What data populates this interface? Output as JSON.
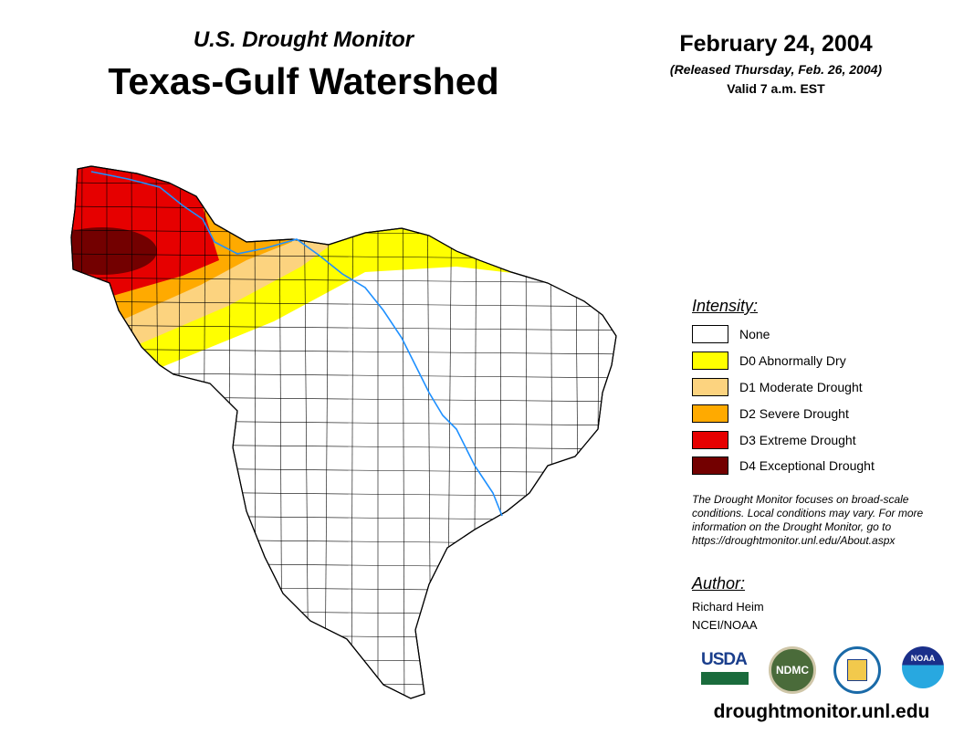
{
  "header": {
    "subtitle": "U.S. Drought Monitor",
    "title": "Texas-Gulf Watershed",
    "date": "February 24, 2004",
    "released": "(Released Thursday, Feb. 26, 2004)",
    "valid": "Valid 7 a.m. EST"
  },
  "legend": {
    "title": "Intensity:",
    "items": [
      {
        "label": "None",
        "color": "#ffffff"
      },
      {
        "label": "D0 Abnormally Dry",
        "color": "#ffff00"
      },
      {
        "label": "D1 Moderate Drought",
        "color": "#fcd37f"
      },
      {
        "label": "D2 Severe Drought",
        "color": "#ffaa00"
      },
      {
        "label": "D3 Extreme Drought",
        "color": "#e60000"
      },
      {
        "label": "D4 Exceptional Drought",
        "color": "#730000"
      }
    ]
  },
  "note": "The Drought Monitor focuses on broad-scale conditions. Local conditions may vary. For more information on the Drought Monitor, go to https://droughtmonitor.unl.edu/About.aspx",
  "author": {
    "title": "Author:",
    "name": "Richard Heim",
    "org": "NCEI/NOAA"
  },
  "logos": {
    "usda": "USDA",
    "ndmc": "NDMC",
    "noaa": "NOAA"
  },
  "footer_url": "droughtmonitor.unl.edu",
  "colors": {
    "river": "#1e90ff"
  }
}
